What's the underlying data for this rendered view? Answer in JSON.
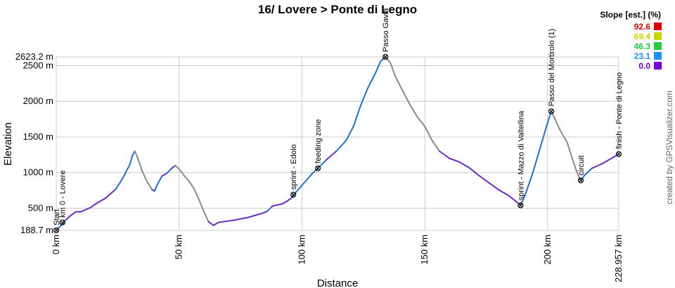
{
  "chart_data": {
    "type": "line",
    "title": "16/ Lovere > Ponte di Legno",
    "xlabel": "Distance",
    "ylabel": "Elevation",
    "xlim": [
      0,
      228.957
    ],
    "ylim": [
      188.7,
      2623.2
    ],
    "x_ticks": [
      {
        "value": 0,
        "label": "0 km"
      },
      {
        "value": 50,
        "label": "50 km"
      },
      {
        "value": 100,
        "label": "100 km"
      },
      {
        "value": 150,
        "label": "150 km"
      },
      {
        "value": 200,
        "label": "200 km"
      },
      {
        "value": 228.957,
        "label": "228.957 km"
      }
    ],
    "y_ticks": [
      {
        "value": 188.7,
        "label": "188.7 m"
      },
      {
        "value": 500,
        "label": "500 m"
      },
      {
        "value": 1000,
        "label": "1000 m"
      },
      {
        "value": 1500,
        "label": "1500 m"
      },
      {
        "value": 2000,
        "label": "2000 m"
      },
      {
        "value": 2500,
        "label": "2500 m"
      },
      {
        "value": 2623.2,
        "label": "2623.2 m"
      }
    ],
    "grid": true,
    "series": [
      {
        "points": [
          [
            0,
            190
          ],
          [
            2,
            260
          ],
          [
            4,
            340
          ],
          [
            6,
            400
          ],
          [
            8,
            450
          ],
          [
            10,
            450
          ],
          [
            12,
            480
          ],
          [
            14,
            510
          ],
          [
            16,
            560
          ],
          [
            18,
            600
          ],
          [
            20,
            640
          ],
          [
            22,
            700
          ],
          [
            24,
            760
          ],
          [
            26,
            860
          ],
          [
            28,
            980
          ],
          [
            30,
            1120
          ],
          [
            31,
            1240
          ],
          [
            32,
            1300
          ],
          [
            33,
            1220
          ],
          [
            35,
            1020
          ],
          [
            37,
            870
          ],
          [
            39,
            760
          ],
          [
            40,
            740
          ],
          [
            41,
            820
          ],
          [
            43,
            950
          ],
          [
            45,
            990
          ],
          [
            47,
            1060
          ],
          [
            48.5,
            1100
          ],
          [
            50,
            1050
          ],
          [
            52,
            960
          ],
          [
            54,
            880
          ],
          [
            56,
            780
          ],
          [
            58,
            630
          ],
          [
            60,
            460
          ],
          [
            62,
            310
          ],
          [
            64,
            260
          ],
          [
            66,
            300
          ],
          [
            68,
            310
          ],
          [
            72,
            330
          ],
          [
            78,
            370
          ],
          [
            84,
            430
          ],
          [
            86,
            460
          ],
          [
            88,
            530
          ],
          [
            92,
            560
          ],
          [
            94,
            600
          ],
          [
            96,
            650
          ],
          [
            97,
            700
          ],
          [
            99,
            780
          ],
          [
            101,
            860
          ],
          [
            104,
            980
          ],
          [
            106.5,
            1060
          ],
          [
            110,
            1180
          ],
          [
            114,
            1300
          ],
          [
            118,
            1450
          ],
          [
            121,
            1650
          ],
          [
            124,
            1950
          ],
          [
            127,
            2200
          ],
          [
            130,
            2400
          ],
          [
            132,
            2560
          ],
          [
            134,
            2623.2
          ],
          [
            136,
            2540
          ],
          [
            138,
            2350
          ],
          [
            141,
            2150
          ],
          [
            144,
            1950
          ],
          [
            147,
            1780
          ],
          [
            150,
            1650
          ],
          [
            153,
            1450
          ],
          [
            156,
            1300
          ],
          [
            160,
            1200
          ],
          [
            164,
            1150
          ],
          [
            168,
            1070
          ],
          [
            172,
            960
          ],
          [
            176,
            860
          ],
          [
            180,
            760
          ],
          [
            184,
            680
          ],
          [
            187,
            600
          ],
          [
            189,
            540
          ],
          [
            191,
            700
          ],
          [
            194,
            1000
          ],
          [
            197,
            1350
          ],
          [
            200,
            1700
          ],
          [
            201.5,
            1860
          ],
          [
            203,
            1750
          ],
          [
            205,
            1600
          ],
          [
            208,
            1420
          ],
          [
            210,
            1200
          ],
          [
            212,
            1000
          ],
          [
            213.5,
            890
          ],
          [
            215,
            960
          ],
          [
            218,
            1060
          ],
          [
            222,
            1120
          ],
          [
            226,
            1200
          ],
          [
            228.957,
            1260
          ]
        ]
      }
    ],
    "waypoints": [
      {
        "x": 0,
        "y": 188.7,
        "label": "Start"
      },
      {
        "x": 2.5,
        "y": 300,
        "label": "km 0 - Lovere"
      },
      {
        "x": 96.5,
        "y": 690,
        "label": "sprint - Edolo"
      },
      {
        "x": 106.5,
        "y": 1060,
        "label": "feeding zone"
      },
      {
        "x": 134,
        "y": 2623.2,
        "label": "Passo Gavia"
      },
      {
        "x": 189,
        "y": 540,
        "label": "sprint - Mazzo di Valtellina"
      },
      {
        "x": 201.5,
        "y": 1860,
        "label": "Passo del Mortirolo (1)"
      },
      {
        "x": 213.5,
        "y": 890,
        "label": "circuit"
      },
      {
        "x": 228.957,
        "y": 1260,
        "label": "finish - Ponte di Legno"
      }
    ],
    "legend": {
      "title": "Slope [est.] (%)",
      "position": "top-right",
      "entries": [
        {
          "label": "92.6",
          "color": "#e00000"
        },
        {
          "label": "69.4",
          "color": "#c8d800"
        },
        {
          "label": "46.3",
          "color": "#22cc44"
        },
        {
          "label": "23.1",
          "color": "#1e90ff"
        },
        {
          "label": "0.0",
          "color": "#7a00d8"
        }
      ]
    },
    "line_colors": {
      "climb": "#1e6fd9",
      "descent": "#8a8a8a",
      "flat": "#6a2bc8"
    }
  },
  "credit": "created by GPSVisualizer.com"
}
